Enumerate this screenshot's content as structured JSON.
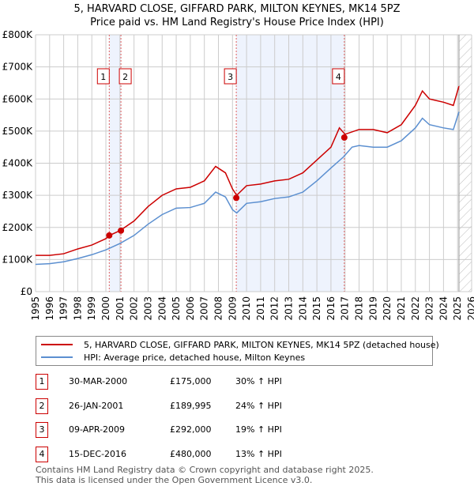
{
  "title": "5, HARVARD CLOSE, GIFFARD PARK, MILTON KEYNES, MK14 5PZ",
  "subtitle": "Price paid vs. HM Land Registry's House Price Index (HPI)",
  "chart_data": {
    "type": "line",
    "xlim": [
      1995,
      2026
    ],
    "ylim": [
      0,
      800000
    ],
    "x_ticks": [
      "1995",
      "1996",
      "1997",
      "1998",
      "1999",
      "2000",
      "2001",
      "2002",
      "2003",
      "2004",
      "2005",
      "2006",
      "2007",
      "2008",
      "2009",
      "2010",
      "2011",
      "2012",
      "2013",
      "2014",
      "2015",
      "2016",
      "2017",
      "2018",
      "2019",
      "2020",
      "2021",
      "2022",
      "2023",
      "2024",
      "2025",
      "2026"
    ],
    "y_ticks": [
      {
        "v": 0,
        "label": "£0"
      },
      {
        "v": 100000,
        "label": "£100K"
      },
      {
        "v": 200000,
        "label": "£200K"
      },
      {
        "v": 300000,
        "label": "£300K"
      },
      {
        "v": 400000,
        "label": "£400K"
      },
      {
        "v": 500000,
        "label": "£500K"
      },
      {
        "v": 600000,
        "label": "£600K"
      },
      {
        "v": 700000,
        "label": "£700K"
      },
      {
        "v": 800000,
        "label": "£800K"
      }
    ],
    "forecast_start": 2025.1,
    "colors": {
      "property": "#cc0000",
      "hpi": "#5b8fd0",
      "shade": "#eef3fd"
    },
    "series": [
      {
        "name": "5, HARVARD CLOSE, GIFFARD PARK, MILTON KEYNES, MK14 5PZ (detached house)",
        "color": "#cc0000",
        "x": [
          1995,
          1996,
          1997,
          1998,
          1999,
          2000,
          2000.25,
          2001,
          2002,
          2003,
          2004,
          2005,
          2006,
          2007,
          2007.8,
          2008.5,
          2009,
          2009.3,
          2010,
          2011,
          2012,
          2013,
          2014,
          2015,
          2016,
          2016.6,
          2017,
          2018,
          2019,
          2020,
          2021,
          2022,
          2022.5,
          2023,
          2024,
          2024.7,
          2025.1
        ],
        "values": [
          113000,
          113000,
          118000,
          133000,
          145000,
          165000,
          175000,
          190000,
          220000,
          265000,
          300000,
          320000,
          325000,
          345000,
          390000,
          370000,
          320000,
          300000,
          330000,
          335000,
          345000,
          350000,
          370000,
          410000,
          450000,
          510000,
          490000,
          505000,
          505000,
          495000,
          520000,
          580000,
          625000,
          600000,
          590000,
          580000,
          640000
        ]
      },
      {
        "name": "HPI: Average price, detached house, Milton Keynes",
        "color": "#5b8fd0",
        "x": [
          1995,
          1996,
          1997,
          1998,
          1999,
          2000,
          2001,
          2002,
          2003,
          2004,
          2005,
          2006,
          2007,
          2007.8,
          2008.5,
          2009,
          2009.3,
          2010,
          2011,
          2012,
          2013,
          2014,
          2015,
          2016,
          2016.9,
          2017.5,
          2018,
          2019,
          2020,
          2021,
          2022,
          2022.5,
          2023,
          2024,
          2024.7,
          2025.1
        ],
        "values": [
          85000,
          87000,
          93000,
          103000,
          115000,
          130000,
          150000,
          175000,
          210000,
          240000,
          260000,
          262000,
          275000,
          310000,
          295000,
          255000,
          245000,
          275000,
          280000,
          290000,
          295000,
          310000,
          345000,
          385000,
          420000,
          450000,
          455000,
          450000,
          450000,
          470000,
          510000,
          540000,
          520000,
          510000,
          505000,
          560000
        ]
      }
    ],
    "sales": [
      {
        "id": "1",
        "x": 2000.24,
        "price": 175000,
        "date": "30-MAR-2000",
        "price_label": "£175,000",
        "hpi": "30% ↑ HPI"
      },
      {
        "id": "2",
        "x": 2001.07,
        "price": 189995,
        "date": "26-JAN-2001",
        "price_label": "£189,995",
        "hpi": "24% ↑ HPI"
      },
      {
        "id": "3",
        "x": 2009.27,
        "price": 292000,
        "date": "09-APR-2009",
        "price_label": "£292,000",
        "hpi": "19% ↑ HPI"
      },
      {
        "id": "4",
        "x": 2016.95,
        "price": 480000,
        "date": "15-DEC-2016",
        "price_label": "£480,000",
        "hpi": "13% ↑ HPI"
      }
    ]
  },
  "legend": {
    "property": "5, HARVARD CLOSE, GIFFARD PARK, MILTON KEYNES, MK14 5PZ (detached house)",
    "hpi": "HPI: Average price, detached house, Milton Keynes"
  },
  "footer": {
    "line1": "Contains HM Land Registry data © Crown copyright and database right 2025.",
    "line2": "This data is licensed under the Open Government Licence v3.0."
  }
}
